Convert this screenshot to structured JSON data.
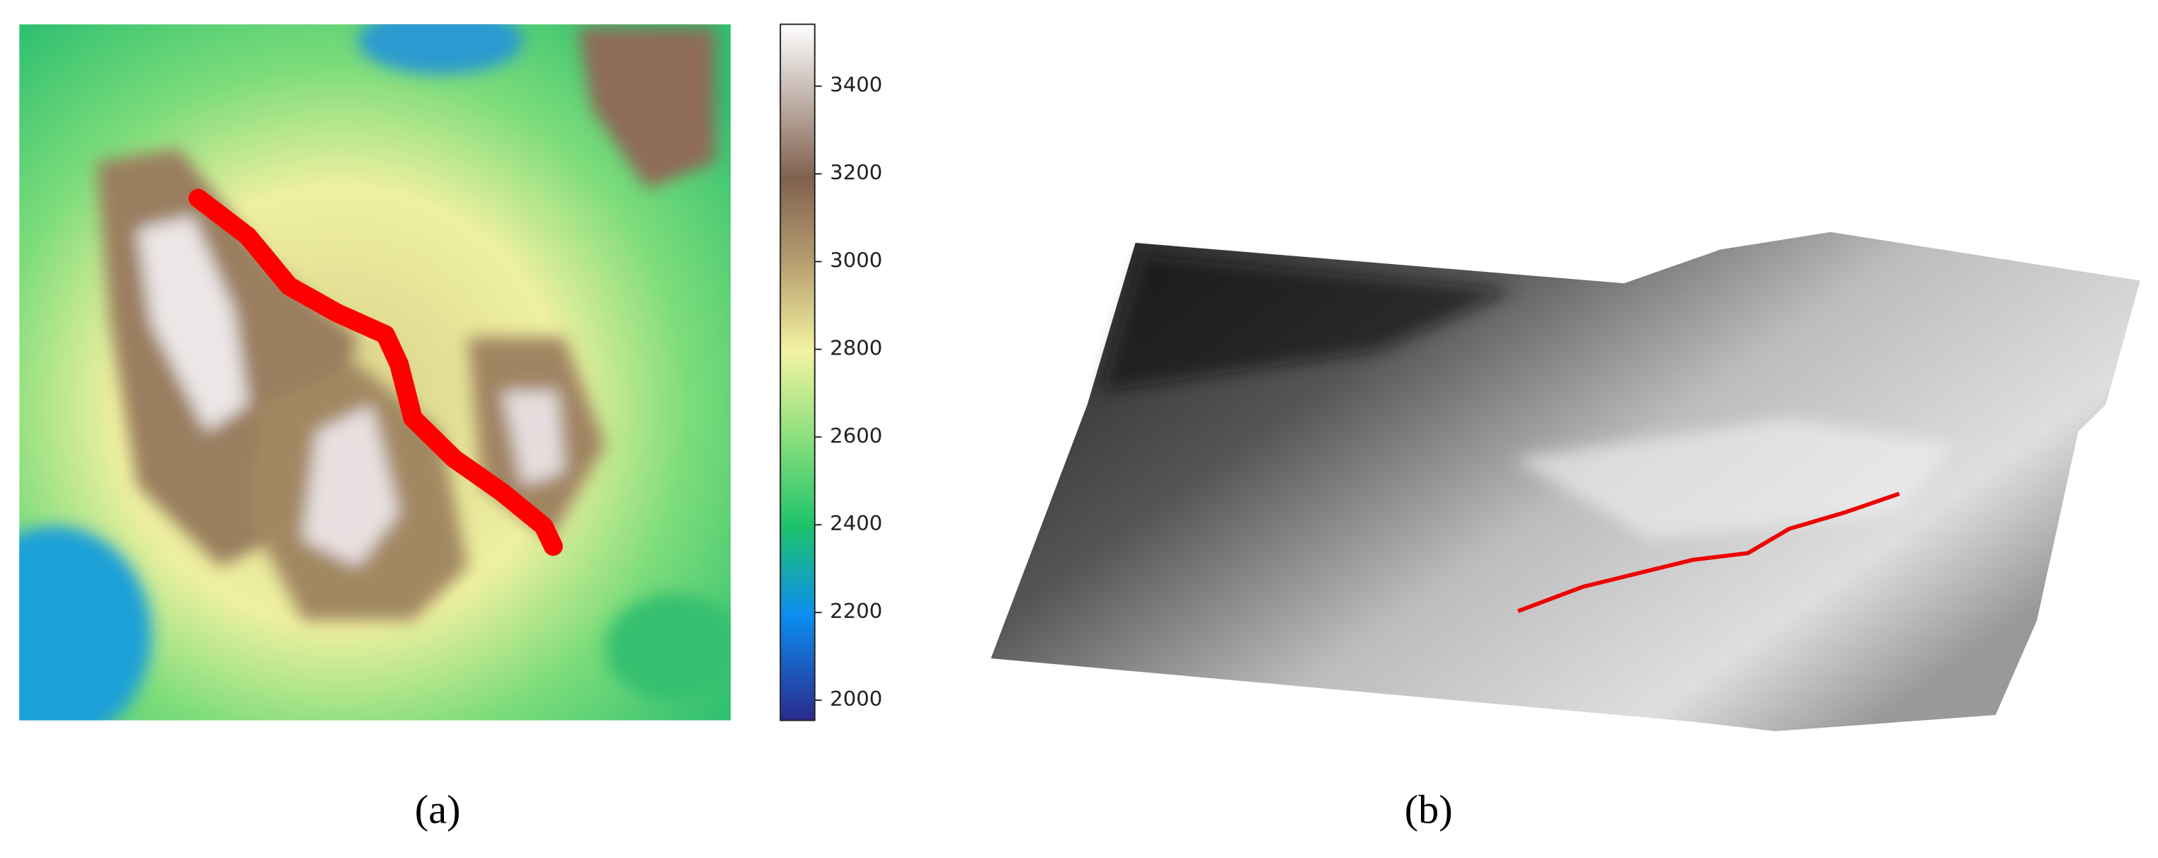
{
  "panels": [
    {
      "label": "(a)",
      "colorbar": {
        "lim": [
          1954,
          3541
        ],
        "ticks": [
          2000,
          2200,
          2400,
          2600,
          2800,
          3000,
          3200,
          3400
        ]
      }
    },
    {
      "label": "(b)"
    }
  ]
}
